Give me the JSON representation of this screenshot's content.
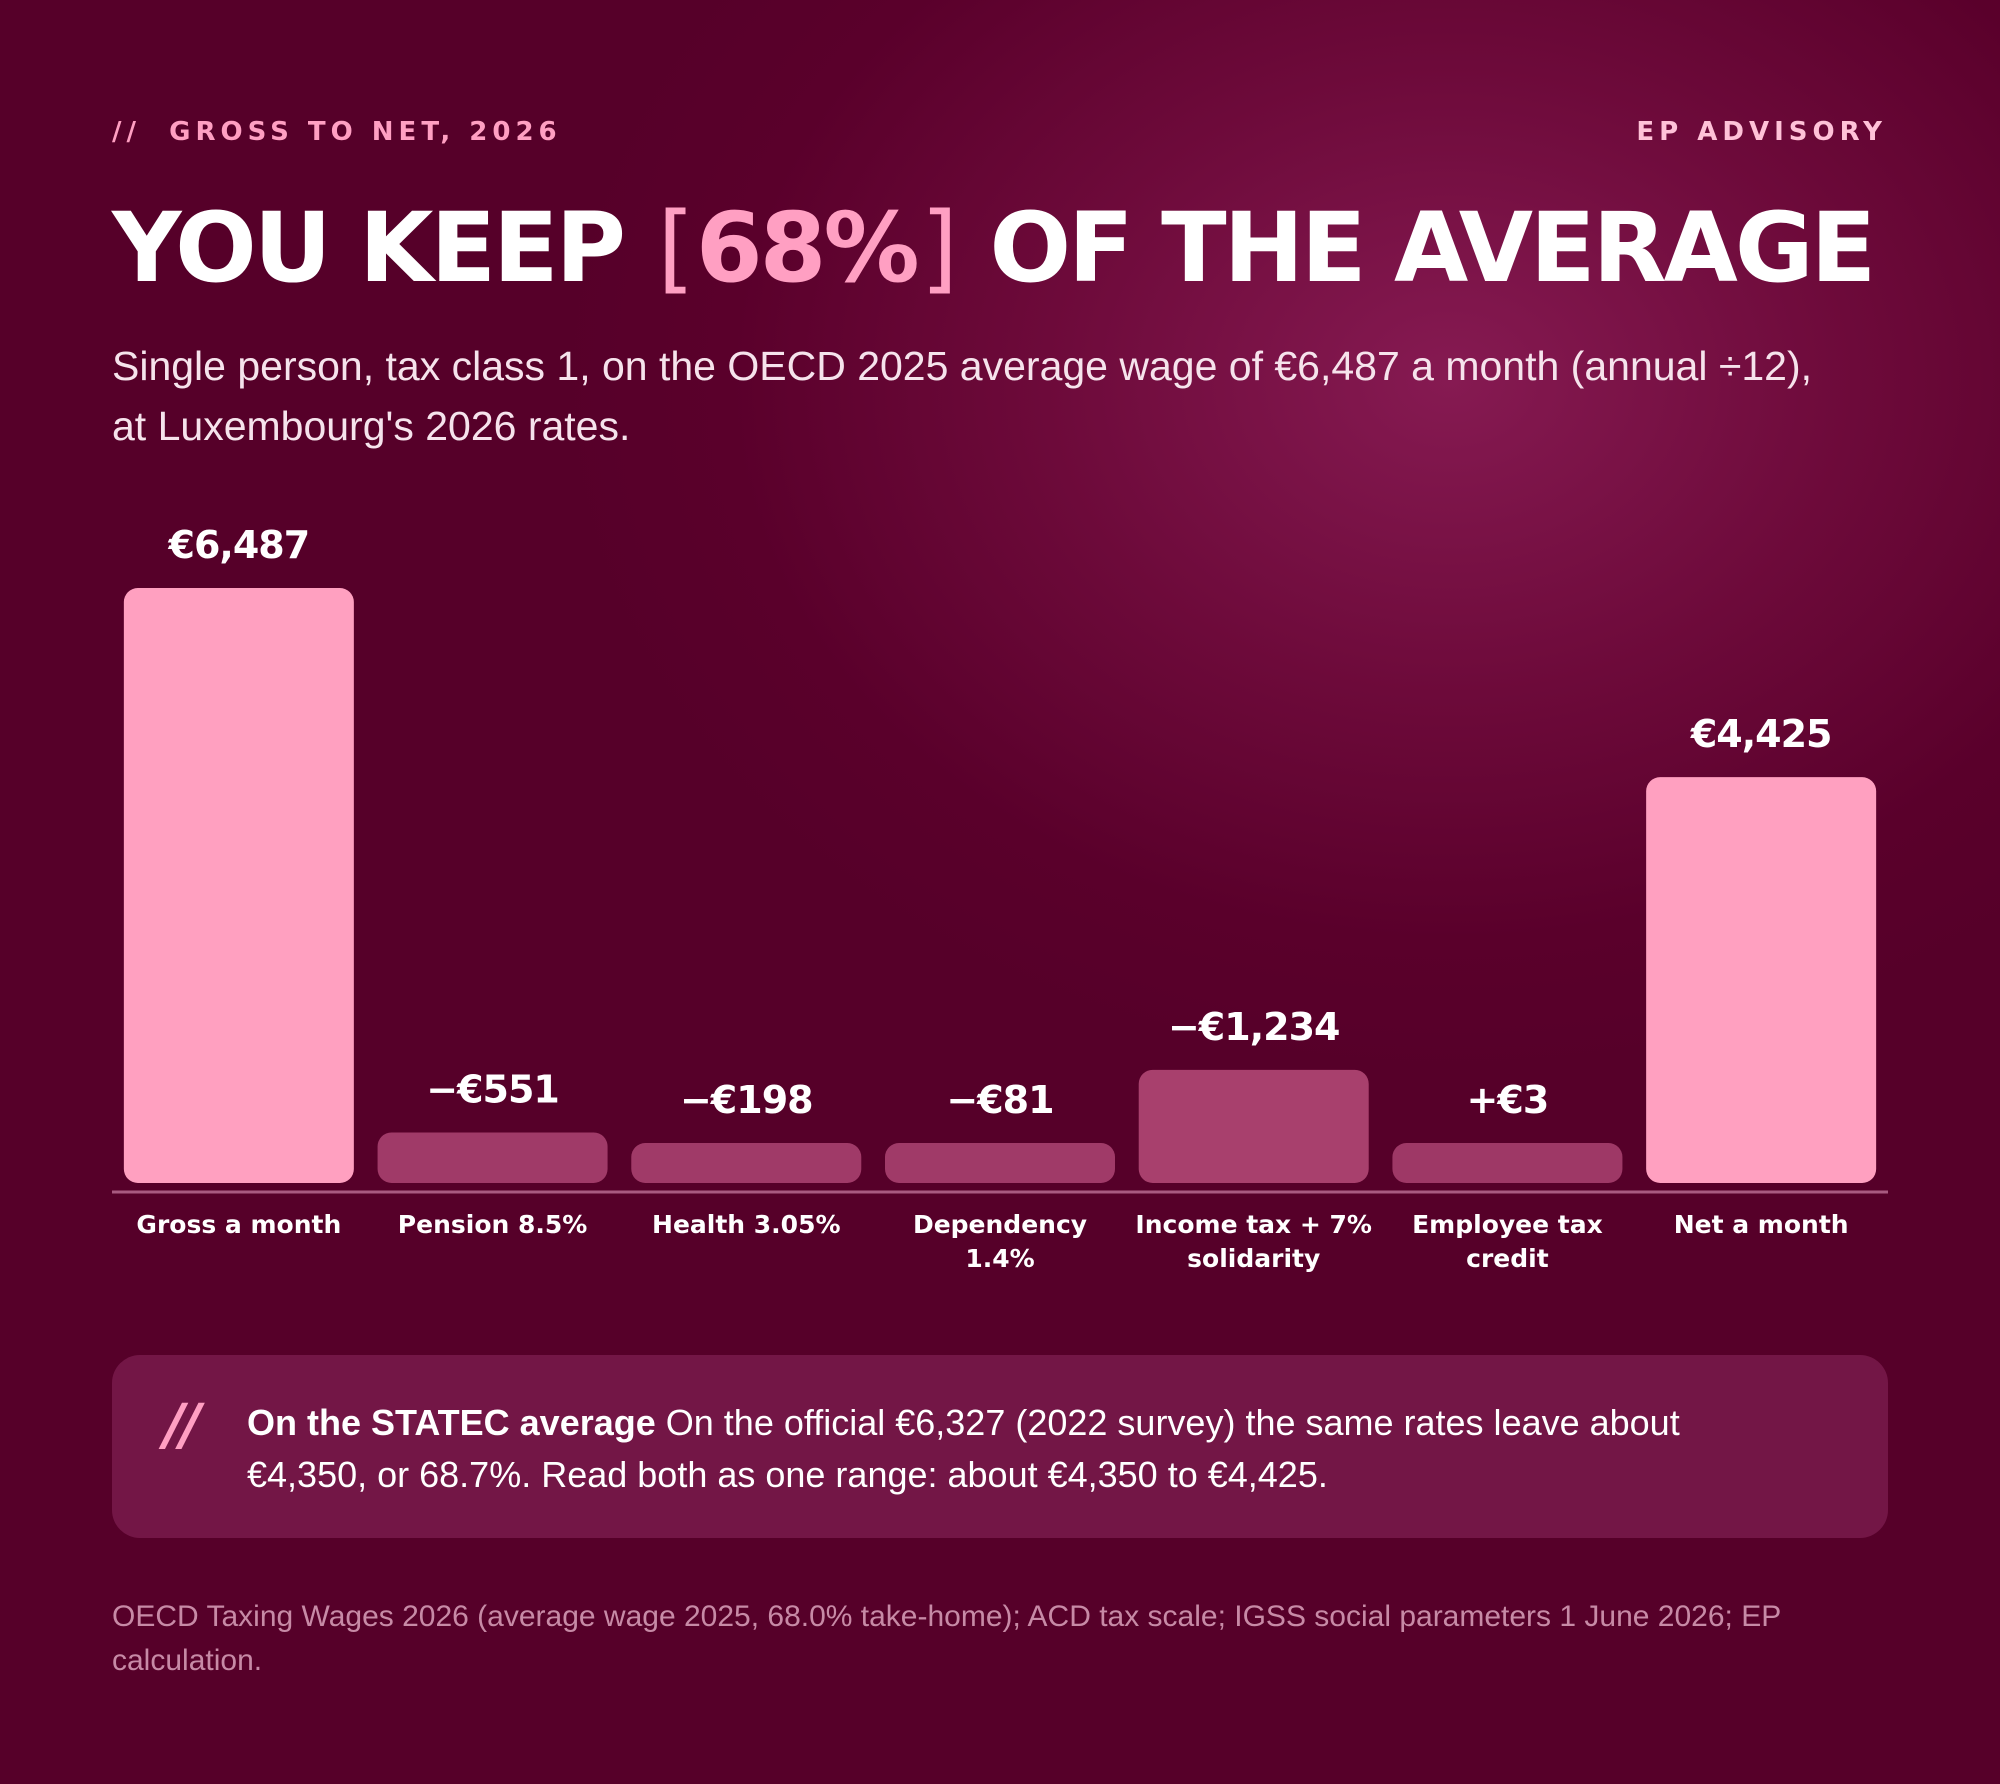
{
  "header": {
    "kicker_mark": "//",
    "kicker": "GROSS TO NET, 2026",
    "brand": "EP ADVISORY"
  },
  "headline": {
    "before": "YOU KEEP",
    "bracket_open": "[",
    "highlight": "68%",
    "bracket_close": "]",
    "after": "OF THE AVERAGE"
  },
  "subtitle": "Single person, tax class 1, on the OECD 2025 average wage of €6,487 a month (annual ÷12), at Luxembourg's 2026 rates.",
  "chart_data": {
    "type": "bar",
    "categories": [
      "Gross a month",
      "Pension 8.5%",
      "Health 3.05%",
      "Dependency 1.4%",
      "Income tax + 7% solidarity",
      "Employee tax credit",
      "Net a month"
    ],
    "category_lines": [
      [
        "Gross a month"
      ],
      [
        "Pension 8.5%"
      ],
      [
        "Health 3.05%"
      ],
      [
        "Dependency",
        "1.4%"
      ],
      [
        "Income tax + 7%",
        "solidarity"
      ],
      [
        "Employee tax",
        "credit"
      ],
      [
        "Net a month"
      ]
    ],
    "values": [
      6487,
      -551,
      -198,
      -81,
      -1234,
      3,
      4425
    ],
    "data_labels": [
      "€6,487",
      "−€551",
      "−€198",
      "−€81",
      "−€1,234",
      "+€3",
      "€4,425"
    ],
    "ylim": [
      0,
      6487
    ],
    "grid": false,
    "colors": {
      "total": "#ffa0c0",
      "deduction": "#a03a68",
      "tax": "#a8406d",
      "credit": "#9e3866",
      "baseline": "#a85a80"
    }
  },
  "note": {
    "mark": "//",
    "lead": "On the STATEC average",
    "body": " On the official €6,327 (2022 survey) the same rates leave about €4,350, or 68.7%. Read both as one range: about €4,350 to €4,425."
  },
  "source": "OECD Taxing Wages 2026 (average wage 2025, 68.0% take-home); ACD tax scale; IGSS social parameters 1 June 2026; EP calculation."
}
